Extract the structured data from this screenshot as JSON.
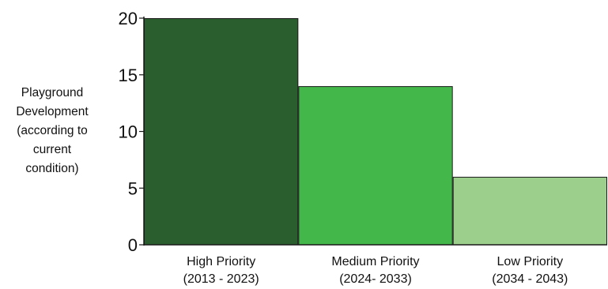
{
  "chart_data": {
    "type": "bar",
    "title": "",
    "xlabel": "",
    "ylabel_lines": [
      "Playground",
      "Development",
      "(according to",
      "current",
      "condition)"
    ],
    "categories": [
      [
        "High Priority",
        "(2013 - 2023)"
      ],
      [
        "Medium Priority",
        "(2024- 2033)"
      ],
      [
        "Low Priority",
        "(2034 - 2043)"
      ]
    ],
    "values": [
      20,
      14,
      6
    ],
    "ylim": [
      0,
      20
    ],
    "yticks": [
      0,
      5,
      10,
      15,
      20
    ],
    "grid": false,
    "legend": "none",
    "colors": [
      "#2a5e2e",
      "#44b74a",
      "#9bcf8b"
    ],
    "edge_color": "#1a1a1a"
  }
}
